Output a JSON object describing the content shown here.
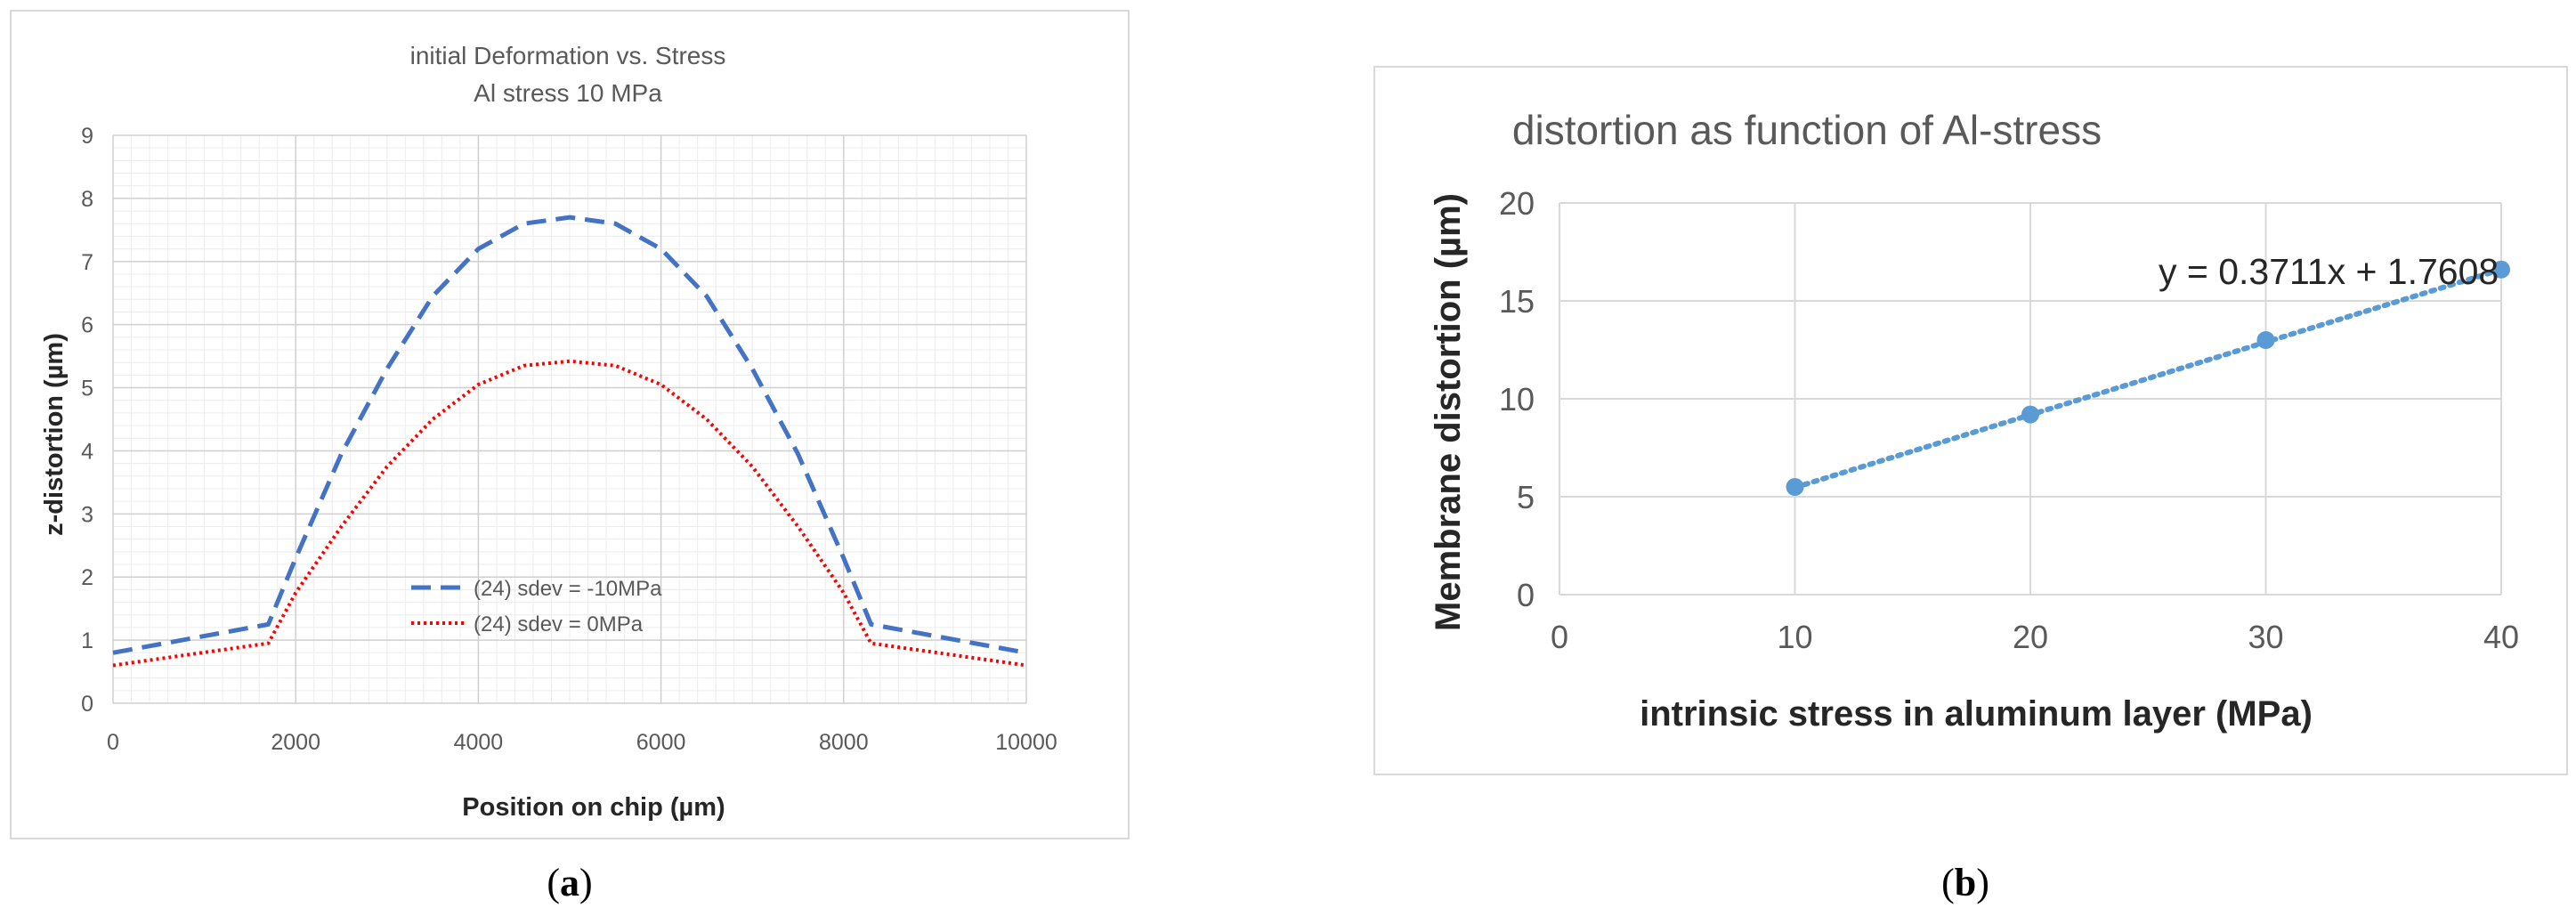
{
  "panels": {
    "a_caption_open": "(",
    "a_caption_letter": "a",
    "a_caption_close": ")",
    "b_caption_open": "(",
    "b_caption_letter": "b",
    "b_caption_close": ")"
  },
  "chart_data": [
    {
      "type": "line",
      "title": "initial Deformation vs. Stress",
      "subtitle": "Al stress 10 MPa",
      "xlabel": "Position on chip (µm)",
      "ylabel": "z-distortion (µm)",
      "xlim": [
        0,
        10000
      ],
      "ylim": [
        0,
        9
      ],
      "xticks": [
        0,
        2000,
        4000,
        6000,
        8000,
        10000
      ],
      "yticks": [
        0,
        1,
        2,
        3,
        4,
        5,
        6,
        7,
        8,
        9
      ],
      "grid": true,
      "legend_position": "lower-center",
      "series": [
        {
          "name": "(24) sdev = -10MPa",
          "color": "#4472c4",
          "style": "dashed",
          "x": [
            0,
            1700,
            2000,
            2500,
            3000,
            3500,
            4000,
            4500,
            5000,
            5500,
            6000,
            6500,
            7000,
            7500,
            8000,
            8300,
            10000
          ],
          "y": [
            0.8,
            1.25,
            2.3,
            3.95,
            5.3,
            6.45,
            7.2,
            7.6,
            7.7,
            7.6,
            7.2,
            6.45,
            5.3,
            3.95,
            2.3,
            1.25,
            0.8
          ]
        },
        {
          "name": "(24) sdev = 0MPa",
          "color": "#ff0000",
          "style": "dotted",
          "x": [
            0,
            1700,
            2000,
            2500,
            3000,
            3500,
            4000,
            4500,
            5000,
            5500,
            6000,
            6500,
            7000,
            7500,
            8000,
            8300,
            10000
          ],
          "y": [
            0.6,
            0.95,
            1.75,
            2.8,
            3.75,
            4.5,
            5.05,
            5.35,
            5.42,
            5.35,
            5.05,
            4.5,
            3.75,
            2.8,
            1.75,
            0.95,
            0.6
          ]
        }
      ]
    },
    {
      "type": "scatter",
      "title": "distortion as function of Al-stress",
      "xlabel": "intrinsic stress in aluminum layer (MPa)",
      "ylabel": "Membrane distortion (µm)",
      "xlim": [
        0,
        40
      ],
      "ylim": [
        0,
        20
      ],
      "xticks": [
        0,
        10,
        20,
        30,
        40
      ],
      "yticks": [
        0,
        5,
        10,
        15,
        20
      ],
      "grid": true,
      "marker_color": "#5b9bd5",
      "points": {
        "x": [
          10,
          20,
          30,
          40
        ],
        "y": [
          5.5,
          9.2,
          13.0,
          16.6
        ]
      },
      "trendline": {
        "equation": "y = 0.3711x + 1.7608",
        "slope": 0.3711,
        "intercept": 1.7608,
        "style": "dotted"
      }
    }
  ]
}
